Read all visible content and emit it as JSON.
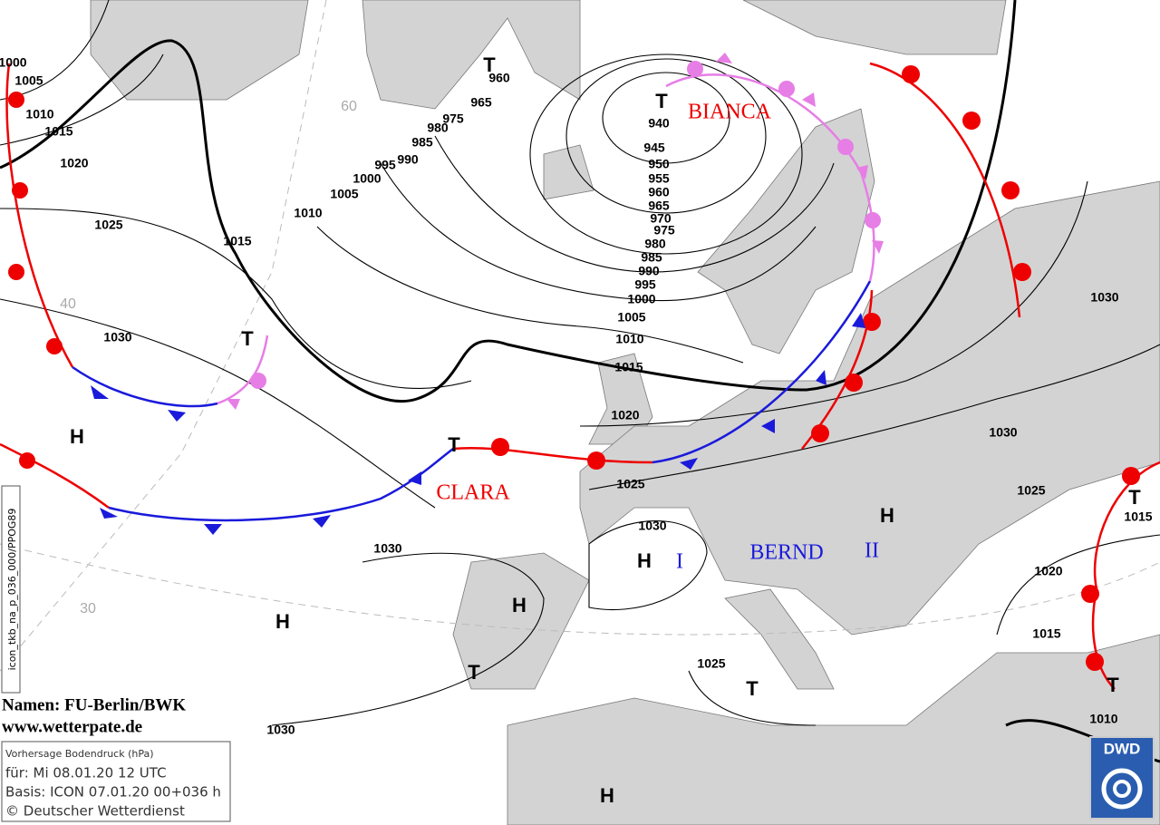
{
  "isobar_labels": [
    1000,
    1005,
    1010,
    1015,
    1020,
    1025,
    1015,
    1030,
    1010,
    1005,
    1000,
    995,
    990,
    985,
    980,
    975,
    965,
    960,
    940,
    945,
    950,
    955,
    960,
    965,
    970,
    975,
    980,
    985,
    990,
    995,
    1000,
    1005,
    1010,
    1015,
    1020,
    1025,
    1030,
    1025,
    1030,
    1025,
    1020,
    1015,
    1010,
    1030,
    1015,
    1030,
    1030
  ],
  "pressure_centers": [
    "T",
    "T",
    "T",
    "T",
    "T",
    "T",
    "T",
    "T",
    "H",
    "H",
    "H",
    "H",
    "H",
    "H"
  ],
  "storm_names": [
    "BIANCA",
    "CLARA",
    "BERND",
    "I",
    "II"
  ],
  "latitude_labels": [
    "60",
    "40",
    "30"
  ],
  "credits": {
    "names": "Namen: FU-Berlin/BWK",
    "website": "www.wetterpate.de"
  },
  "info_box": [
    "Vorhersage Bodendruck (hPa)",
    "für:  Mi 08.01.20  12 UTC",
    "Basis: ICON  07.01.20 00+036 h",
    "© Deutscher Wetterdienst"
  ],
  "model_id": "icon_tkb_na_p_036_000/PPOG89",
  "logo": "DWD"
}
